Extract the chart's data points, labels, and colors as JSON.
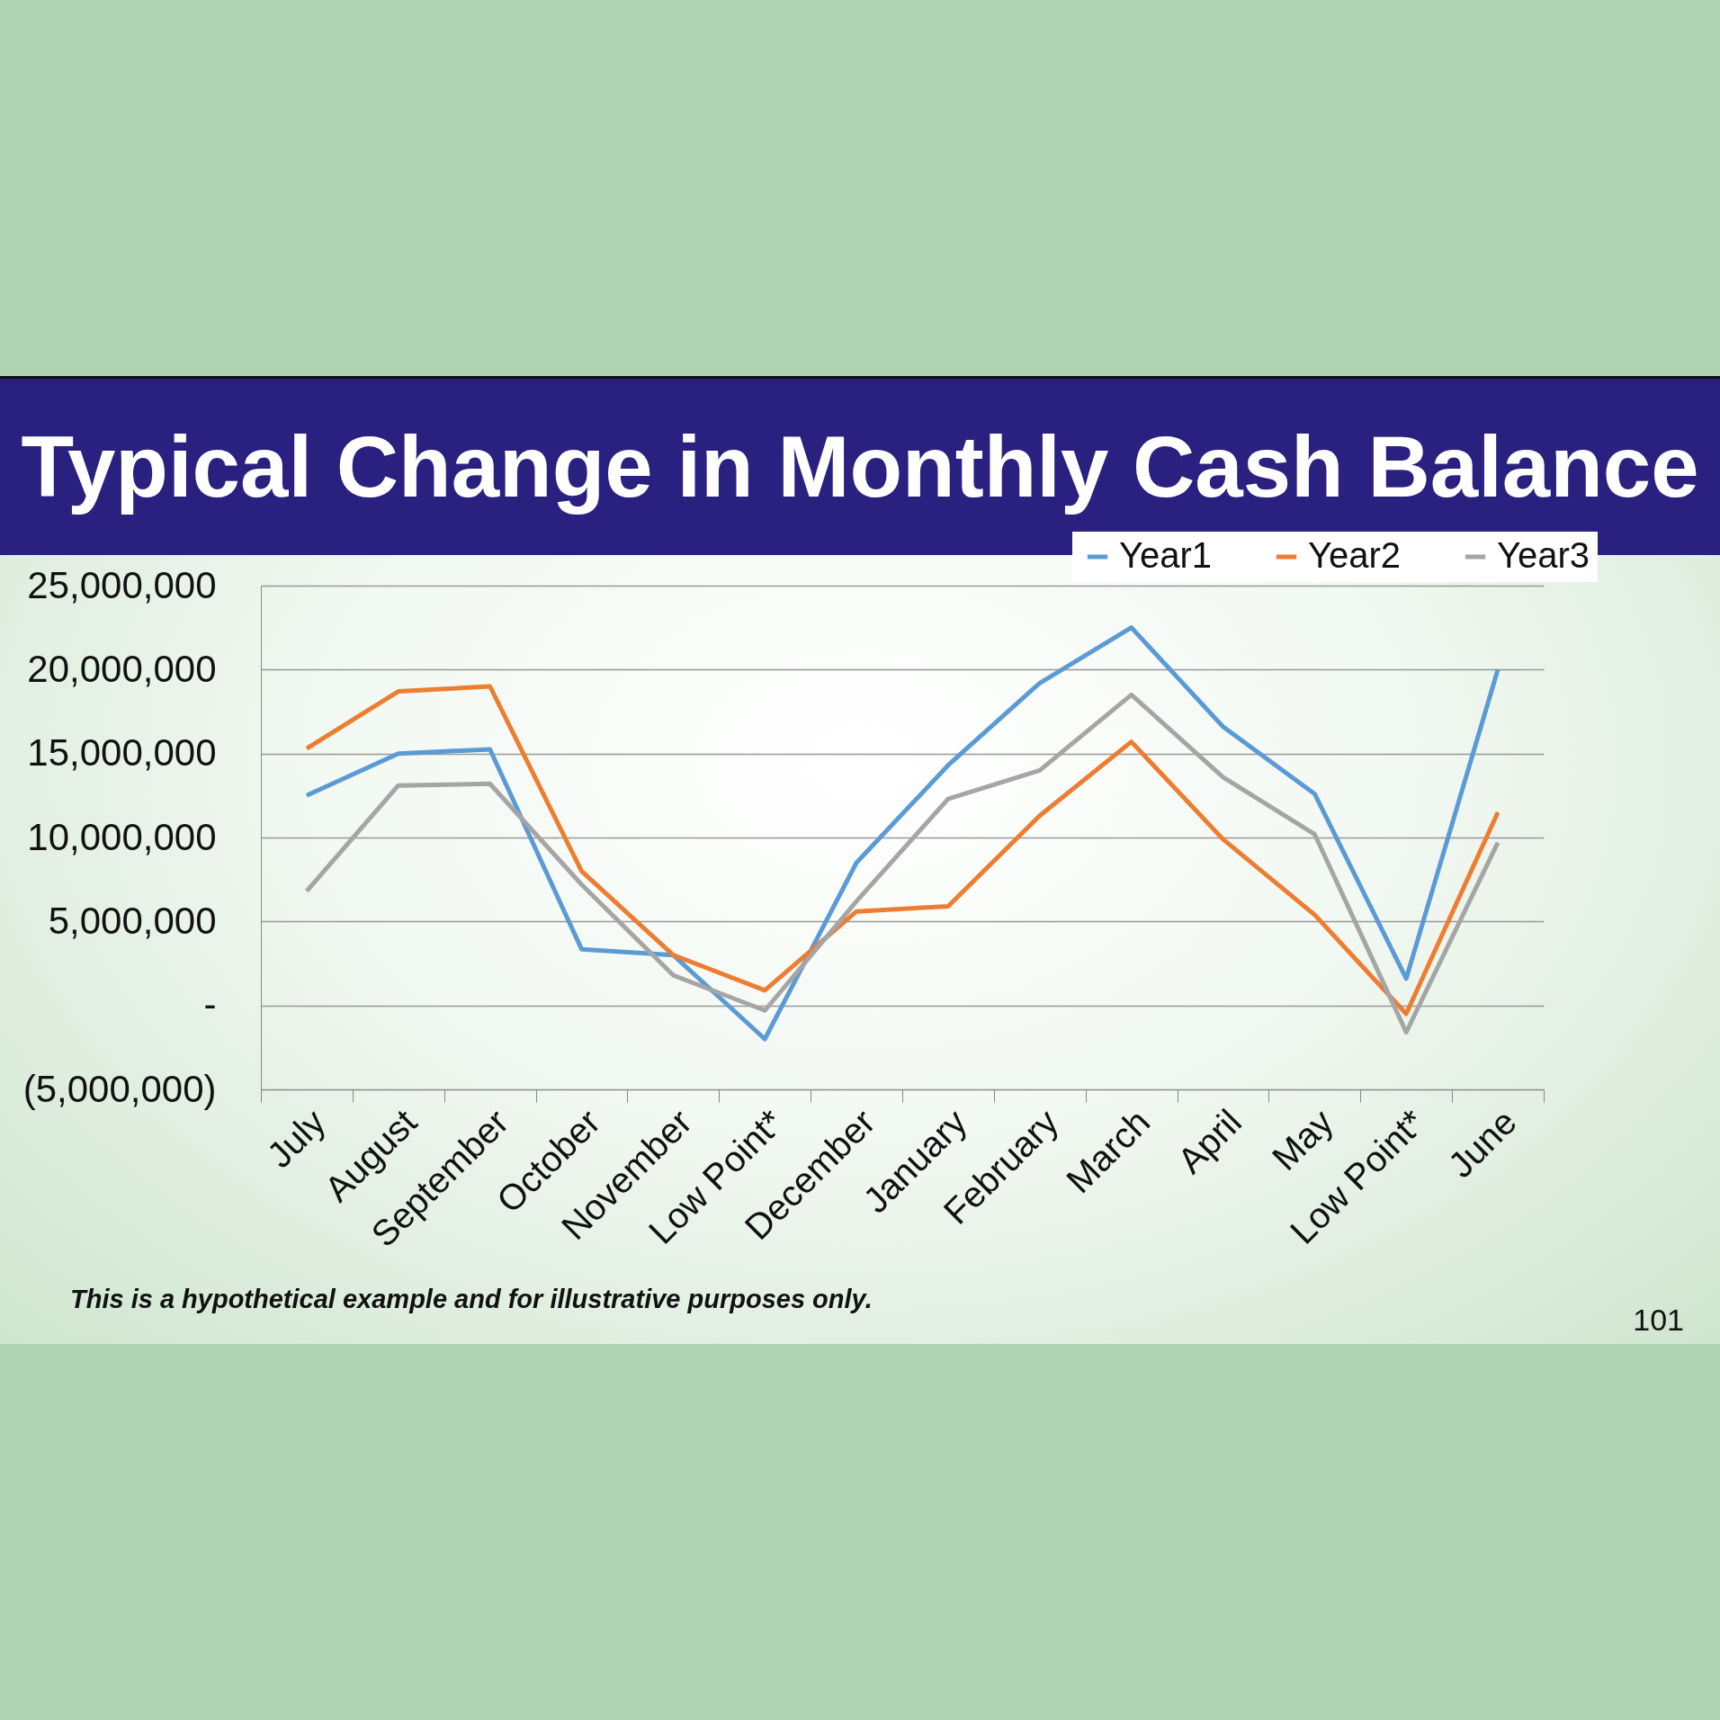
{
  "chart_data": {
    "type": "line",
    "title": "Typical Change in Monthly Cash Balance",
    "categories": [
      "July",
      "August",
      "September",
      "October",
      "November",
      "Low Point*",
      "December",
      "January",
      "February",
      "March",
      "April",
      "May",
      "Low Point*",
      "June"
    ],
    "series": [
      {
        "name": "Year1",
        "color": "#5b9bd5",
        "values": [
          12500000,
          15000000,
          15250000,
          3350000,
          3000000,
          -2000000,
          8500000,
          14300000,
          19200000,
          22500000,
          16600000,
          12600000,
          1600000,
          20000000
        ]
      },
      {
        "name": "Year2",
        "color": "#ed7d31",
        "values": [
          15300000,
          18700000,
          19000000,
          8000000,
          3000000,
          900000,
          5600000,
          5900000,
          11300000,
          15700000,
          9900000,
          5400000,
          -500000,
          11500000
        ]
      },
      {
        "name": "Year3",
        "color": "#a5a5a5",
        "values": [
          6800000,
          13100000,
          13200000,
          7200000,
          1800000,
          -300000,
          6200000,
          12300000,
          14000000,
          18500000,
          13600000,
          10200000,
          -1600000,
          9700000
        ]
      }
    ],
    "ylim": [
      -5000000,
      25000000
    ],
    "yticks": [
      {
        "value": -5000000,
        "label": "(5,000,000)"
      },
      {
        "value": 0,
        "label": "-"
      },
      {
        "value": 5000000,
        "label": "5,000,000"
      },
      {
        "value": 10000000,
        "label": "10,000,000"
      },
      {
        "value": 15000000,
        "label": "15,000,000"
      },
      {
        "value": 20000000,
        "label": "20,000,000"
      },
      {
        "value": 25000000,
        "label": "25,000,000"
      }
    ],
    "grid": "y",
    "legend": "top right",
    "line_style": "solid",
    "annotations": [
      "This is a hypothetical example and for illustrative purposes only.",
      "101"
    ]
  }
}
